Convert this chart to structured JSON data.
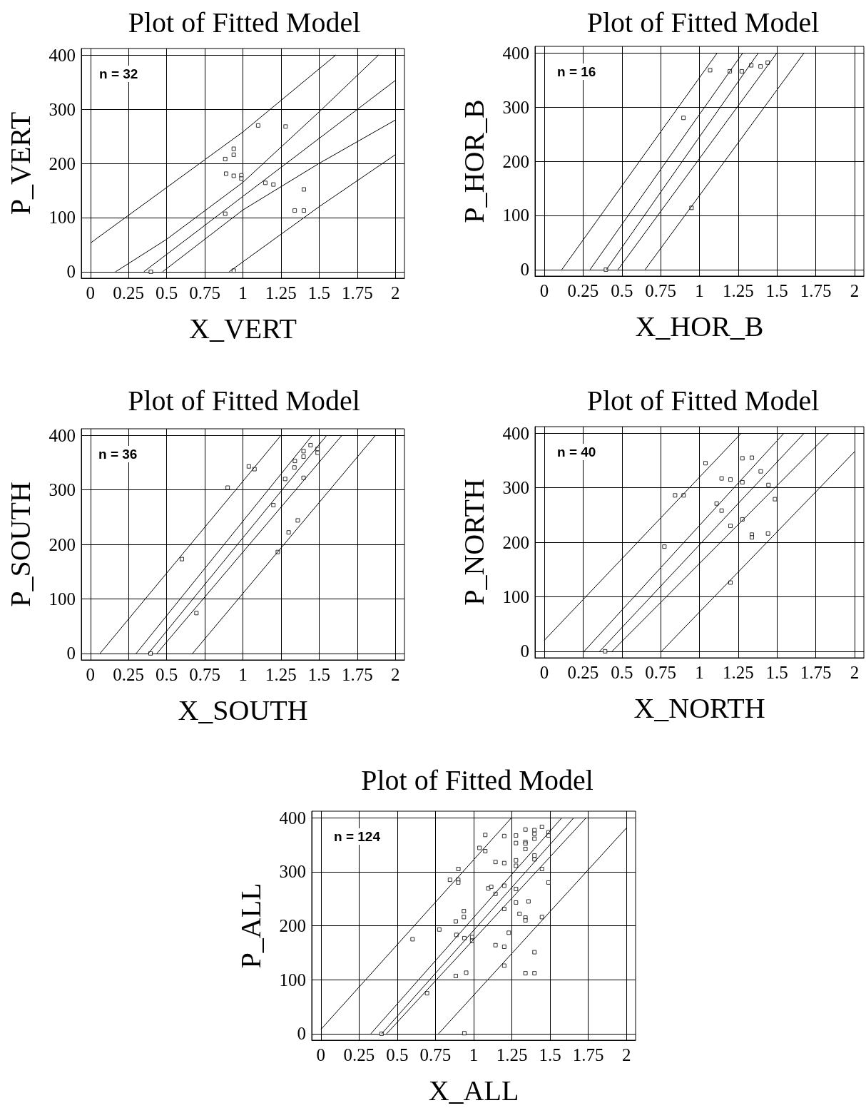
{
  "chart_data": [
    {
      "type": "scatter",
      "title": "Plot of Fitted Model",
      "xlabel": "X_VERT",
      "ylabel": "P_VERT",
      "annotations": [
        "n = 32"
      ],
      "xlim": [
        -0.06,
        2.06
      ],
      "ylim": [
        -12,
        412
      ],
      "xticks": [
        0,
        0.25,
        0.5,
        0.75,
        1,
        1.25,
        1.5,
        1.75,
        2
      ],
      "yticks": [
        0,
        100,
        200,
        300,
        400
      ],
      "grid": true,
      "marker": "square",
      "series": [
        {
          "color": "#000000",
          "x": [
            1.1,
            1.28,
            0.94,
            0.94,
            0.884,
            0.89,
            0.94,
            0.99,
            0.99,
            1.147,
            1.2,
            1.4,
            1.34,
            1.4,
            0.884,
            0.396,
            0.94
          ],
          "values": [
            270,
            268,
            227,
            216,
            208,
            181,
            177,
            178,
            172,
            164,
            161,
            152,
            113,
            113,
            107,
            0,
            2
          ]
        },
        {
          "type": "line",
          "marker": "none",
          "color": "#000000",
          "x": [
            0,
            1,
            1.61
          ],
          "values": [
            53,
            258,
            400
          ]
        },
        {
          "type": "line",
          "marker": "none",
          "color": "#000000",
          "x": [
            0.165,
            0.5,
            1,
            1.5,
            1.89
          ],
          "values": [
            0,
            60,
            165,
            295,
            400
          ]
        },
        {
          "type": "line",
          "marker": "none",
          "color": "#000000",
          "x": [
            0.35,
            2
          ],
          "values": [
            0,
            353
          ]
        },
        {
          "type": "line",
          "marker": "none",
          "color": "#000000",
          "x": [
            0.473,
            1,
            1.5,
            2
          ],
          "values": [
            0,
            114,
            200,
            280
          ]
        },
        {
          "type": "line",
          "marker": "none",
          "color": "#000000",
          "x": [
            0.91,
            1.5,
            2
          ],
          "values": [
            0,
            120,
            216
          ]
        }
      ]
    },
    {
      "type": "scatter",
      "title": "Plot of Fitted Model",
      "xlabel": "X_HOR_B",
      "ylabel": "P_HOR_B",
      "annotations": [
        "n = 16"
      ],
      "xlim": [
        -0.06,
        2.06
      ],
      "ylim": [
        -12,
        412
      ],
      "xticks": [
        0,
        0.25,
        0.5,
        0.75,
        1,
        1.25,
        1.5,
        1.75,
        2
      ],
      "yticks": [
        0,
        100,
        200,
        300,
        400
      ],
      "grid": true,
      "marker": "square",
      "series": [
        {
          "color": "#000000",
          "x": [
            1.069,
            1.196,
            1.273,
            1.334,
            1.394,
            1.44,
            0.897,
            0.949,
            0.397
          ],
          "values": [
            368,
            366,
            366,
            377,
            375,
            382,
            280,
            114,
            0
          ]
        },
        {
          "type": "line",
          "marker": "none",
          "color": "#000000",
          "x": [
            0.113,
            1.115
          ],
          "values": [
            0,
            400
          ]
        },
        {
          "type": "line",
          "marker": "none",
          "color": "#000000",
          "x": [
            0.295,
            1.28
          ],
          "values": [
            0,
            400
          ]
        },
        {
          "type": "line",
          "marker": "none",
          "color": "#000000",
          "x": [
            0.4,
            1.38
          ],
          "values": [
            0,
            400
          ]
        },
        {
          "type": "line",
          "marker": "none",
          "color": "#000000",
          "x": [
            0.475,
            1.5
          ],
          "values": [
            0,
            400
          ]
        },
        {
          "type": "line",
          "marker": "none",
          "color": "#000000",
          "x": [
            0.65,
            1.675
          ],
          "values": [
            0,
            400
          ]
        }
      ]
    },
    {
      "type": "scatter",
      "title": "Plot of Fitted Model",
      "xlabel": "X_SOUTH",
      "ylabel": "P_SOUTH",
      "annotations": [
        "n = 36"
      ],
      "xlim": [
        -0.06,
        2.06
      ],
      "ylim": [
        -12,
        412
      ],
      "xticks": [
        0,
        0.25,
        0.5,
        0.75,
        1,
        1.25,
        1.5,
        1.75,
        2
      ],
      "yticks": [
        0,
        100,
        200,
        300,
        400
      ],
      "grid": true,
      "marker": "square",
      "series": [
        {
          "color": "#000000",
          "x": [
            1.039,
            1.076,
            0.9,
            0.6,
            0.695,
            0.394,
            1.444,
            1.398,
            1.398,
            1.341,
            1.338,
            1.49,
            1.49,
            1.277,
            1.398,
            1.2,
            1.36,
            1.3,
            1.229
          ],
          "values": [
            343,
            338,
            304,
            173,
            74,
            0,
            382,
            371,
            361,
            353,
            341,
            375,
            368,
            320,
            322,
            272,
            244,
            222,
            186
          ]
        },
        {
          "type": "line",
          "marker": "none",
          "color": "#000000",
          "x": [
            0.063,
            1.25
          ],
          "values": [
            0,
            400
          ]
        },
        {
          "type": "line",
          "marker": "none",
          "color": "#000000",
          "x": [
            0.3,
            1.455
          ],
          "values": [
            0,
            400
          ]
        },
        {
          "type": "line",
          "marker": "none",
          "color": "#000000",
          "x": [
            0.38,
            1.55
          ],
          "values": [
            0,
            400
          ]
        },
        {
          "type": "line",
          "marker": "none",
          "color": "#000000",
          "x": [
            0.436,
            1.65
          ],
          "values": [
            0,
            400
          ]
        },
        {
          "type": "line",
          "marker": "none",
          "color": "#000000",
          "x": [
            0.67,
            1.87
          ],
          "values": [
            0,
            400
          ]
        }
      ]
    },
    {
      "type": "scatter",
      "title": "Plot of Fitted Model",
      "xlabel": "X_NORTH",
      "ylabel": "P_NORTH",
      "annotations": [
        "n = 40"
      ],
      "xlim": [
        -0.06,
        2.06
      ],
      "ylim": [
        -12,
        412
      ],
      "xticks": [
        0,
        0.25,
        0.5,
        0.75,
        1,
        1.25,
        1.5,
        1.75,
        2
      ],
      "yticks": [
        0,
        100,
        200,
        300,
        400
      ],
      "grid": true,
      "marker": "square",
      "series": [
        {
          "color": "#000000",
          "x": [
            1.039,
            1.277,
            1.338,
            1.395,
            1.143,
            1.2,
            1.277,
            1.445,
            0.843,
            0.898,
            1.487,
            1.111,
            1.143,
            1.277,
            1.2,
            1.338,
            1.338,
            1.442,
            0.774,
            1.2,
            0.392
          ],
          "values": [
            345,
            354,
            355,
            330,
            317,
            315,
            310,
            305,
            286,
            286,
            279,
            271,
            258,
            242,
            230,
            214,
            209,
            216,
            192,
            126,
            0
          ]
        },
        {
          "type": "line",
          "marker": "none",
          "color": "#000000",
          "x": [
            0,
            1.27
          ],
          "values": [
            20,
            400
          ]
        },
        {
          "type": "line",
          "marker": "none",
          "color": "#000000",
          "x": [
            0.257,
            1.545
          ],
          "values": [
            0,
            400
          ]
        },
        {
          "type": "line",
          "marker": "none",
          "color": "#000000",
          "x": [
            0.357,
            1.675
          ],
          "values": [
            0,
            400
          ]
        },
        {
          "type": "line",
          "marker": "none",
          "color": "#000000",
          "x": [
            0.437,
            1.836
          ],
          "values": [
            0,
            400
          ]
        },
        {
          "type": "line",
          "marker": "none",
          "color": "#000000",
          "x": [
            0.756,
            2
          ],
          "values": [
            0,
            366
          ]
        }
      ]
    },
    {
      "type": "scatter",
      "title": "Plot of Fitted Model",
      "xlabel": "X_ALL",
      "ylabel": "P_ALL",
      "annotations": [
        "n = 124"
      ],
      "xlim": [
        -0.06,
        2.06
      ],
      "ylim": [
        -12,
        412
      ],
      "xticks": [
        0,
        0.25,
        0.5,
        0.75,
        1,
        1.25,
        1.5,
        1.75,
        2
      ],
      "yticks": [
        0,
        100,
        200,
        300,
        400
      ],
      "grid": true,
      "marker": "square",
      "series": [
        {
          "color": "#000000",
          "x": [
            1.076,
            1.2,
            1.277,
            1.339,
            1.398,
            1.398,
            1.447,
            1.49,
            1.49,
            1.038,
            1.076,
            1.277,
            1.339,
            1.339,
            1.339,
            1.398,
            1.398,
            1.398,
            1.143,
            1.2,
            1.277,
            1.277,
            1.447,
            0.9,
            0.845,
            0.899,
            0.899,
            1.49,
            1.096,
            1.115,
            1.2,
            1.277,
            1.143,
            1.277,
            1.359,
            1.2,
            1.3,
            1.339,
            1.339,
            1.447,
            0.936,
            0.936,
            0.883,
            0.775,
            1.23,
            0.887,
            0.939,
            0.99,
            0.99,
            0.6,
            1.143,
            1.2,
            1.398,
            1.2,
            1.339,
            1.398,
            0.951,
            0.883,
            0.695,
            0.397,
            0.939
          ],
          "values": [
            368,
            366,
            367,
            378,
            377,
            370,
            383,
            373,
            367,
            344,
            338,
            353,
            355,
            352,
            342,
            361,
            330,
            323,
            318,
            316,
            321,
            311,
            305,
            305,
            285,
            285,
            280,
            280,
            269,
            272,
            274,
            268,
            259,
            243,
            245,
            231,
            222,
            215,
            210,
            216,
            227,
            216,
            208,
            193,
            187,
            183,
            177,
            179,
            172,
            175,
            164,
            161,
            151,
            126,
            112,
            112,
            113,
            107,
            75,
            0,
            1
          ]
        },
        {
          "type": "line",
          "marker": "none",
          "color": "#000000",
          "x": [
            0,
            1.248
          ],
          "values": [
            8,
            400
          ]
        },
        {
          "type": "line",
          "marker": "none",
          "color": "#000000",
          "x": [
            0.327,
            1.578
          ],
          "values": [
            0,
            400
          ]
        },
        {
          "type": "line",
          "marker": "none",
          "color": "#000000",
          "x": [
            0.398,
            1.656
          ],
          "values": [
            0,
            400
          ]
        },
        {
          "type": "line",
          "marker": "none",
          "color": "#000000",
          "x": [
            0.43,
            1.737
          ],
          "values": [
            0,
            400
          ]
        },
        {
          "type": "line",
          "marker": "none",
          "color": "#000000",
          "x": [
            0.77,
            2
          ],
          "values": [
            0,
            381
          ]
        }
      ]
    }
  ]
}
